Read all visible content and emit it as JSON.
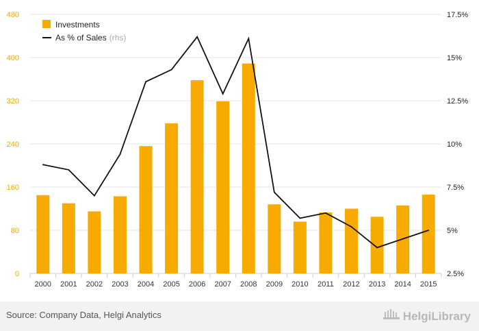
{
  "chart_data": {
    "type": "bar+line",
    "categories": [
      "2000",
      "2001",
      "2002",
      "2003",
      "2004",
      "2005",
      "2006",
      "2007",
      "2008",
      "2009",
      "2010",
      "2011",
      "2012",
      "2013",
      "2014",
      "2015"
    ],
    "series": [
      {
        "name": "Investments",
        "type": "bar",
        "axis": "left",
        "values": [
          145,
          130,
          115,
          143,
          236,
          278,
          358,
          319,
          389,
          128,
          96,
          113,
          120,
          105,
          126,
          146
        ]
      },
      {
        "name": "As % of Sales",
        "name_note": "(rhs)",
        "type": "line",
        "axis": "right",
        "values": [
          8.8,
          8.5,
          7.0,
          9.4,
          13.6,
          14.3,
          16.2,
          12.9,
          16.1,
          7.2,
          5.7,
          6.0,
          5.2,
          4.0,
          4.5,
          5.0
        ]
      }
    ],
    "yleft": {
      "lim": [
        0,
        480
      ],
      "ticks": [
        "0",
        "80",
        "160",
        "240",
        "320",
        "400",
        "480"
      ]
    },
    "yright": {
      "lim": [
        2.5,
        17.5
      ],
      "ticks": [
        "2.5%",
        "5%",
        "7.5%",
        "10%",
        "12.5%",
        "15%",
        "17.5%"
      ]
    },
    "legend_position": "top-left",
    "grid": true
  },
  "colors": {
    "bar": "#f7ab00",
    "line": "#111111",
    "left_axis_text": "#f0a800",
    "grid": "#e6e6e6"
  },
  "footer": {
    "source": "Source: Company Data, Helgi Analytics",
    "brand": "HelgiLibrary",
    "brand_icon": "building-icon"
  }
}
